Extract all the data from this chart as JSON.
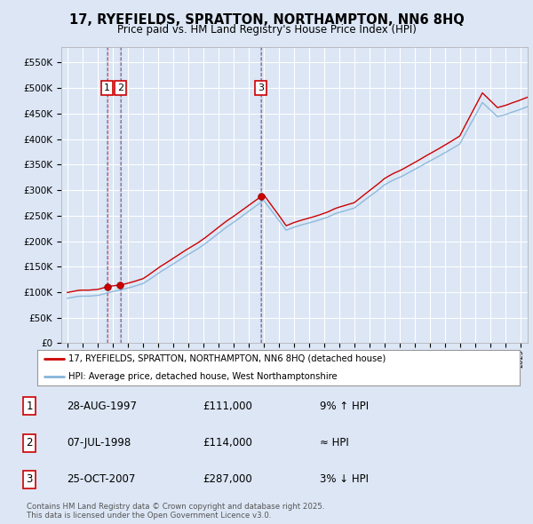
{
  "title": "17, RYEFIELDS, SPRATTON, NORTHAMPTON, NN6 8HQ",
  "subtitle": "Price paid vs. HM Land Registry's House Price Index (HPI)",
  "background_color": "#dce6f5",
  "plot_bg_color": "#dce6f5",
  "grid_color": "#ffffff",
  "sale_color": "#cc0000",
  "hpi_color": "#85b5d9",
  "dashed_sale_color": "#cc4444",
  "dashed_hpi_color": "#8888cc",
  "ylim": [
    0,
    580000
  ],
  "ytick_vals": [
    0,
    50000,
    100000,
    150000,
    200000,
    250000,
    300000,
    350000,
    400000,
    450000,
    500000,
    550000
  ],
  "ytick_labels": [
    "£0",
    "£50K",
    "£100K",
    "£150K",
    "£200K",
    "£250K",
    "£300K",
    "£350K",
    "£400K",
    "£450K",
    "£500K",
    "£550K"
  ],
  "legend_label_sale": "17, RYEFIELDS, SPRATTON, NORTHAMPTON, NN6 8HQ (detached house)",
  "legend_label_hpi": "HPI: Average price, detached house, West Northamptonshire",
  "sale_years_num": [
    1997.646,
    1998.51,
    2007.814
  ],
  "sale_prices": [
    111000,
    114000,
    287000
  ],
  "sale_labels": [
    "1",
    "2",
    "3"
  ],
  "table_rows": [
    [
      "1",
      "28-AUG-1997",
      "£111,000",
      "9% ↑ HPI"
    ],
    [
      "2",
      "07-JUL-1998",
      "£114,000",
      "≈ HPI"
    ],
    [
      "3",
      "25-OCT-2007",
      "£287,000",
      "3% ↓ HPI"
    ]
  ],
  "footnote": "Contains HM Land Registry data © Crown copyright and database right 2025.\nThis data is licensed under the Open Government Licence v3.0."
}
